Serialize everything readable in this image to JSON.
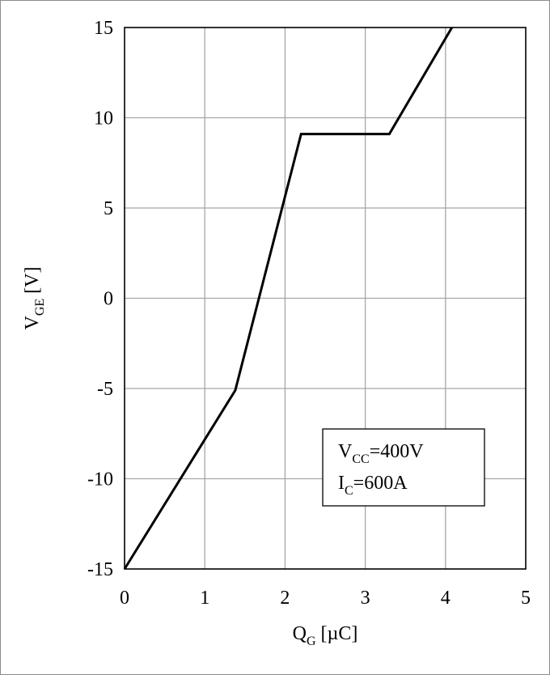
{
  "chart_data": {
    "type": "line",
    "xlabel": {
      "main": "Q",
      "sub": "G",
      "unit": " [µC]"
    },
    "ylabel": {
      "main": "V",
      "sub": "GE",
      "unit": " [V]"
    },
    "xlim": [
      0,
      5
    ],
    "ylim": [
      -15,
      15
    ],
    "xticks": [
      0,
      1,
      2,
      3,
      4,
      5
    ],
    "yticks": [
      -15,
      -10,
      -5,
      0,
      5,
      10,
      15
    ],
    "grid": true,
    "series": [
      {
        "x": [
          0,
          1.38,
          2.2,
          3.3,
          4.08
        ],
        "y": [
          -15,
          -5.1,
          9.1,
          9.1,
          15
        ]
      }
    ],
    "annotation": {
      "placement": "bottom-right",
      "lines": [
        {
          "main": "V",
          "sub": "CC",
          "rest": "=400V"
        },
        {
          "main": "I",
          "sub": "C",
          "rest": "=600A"
        }
      ]
    }
  }
}
